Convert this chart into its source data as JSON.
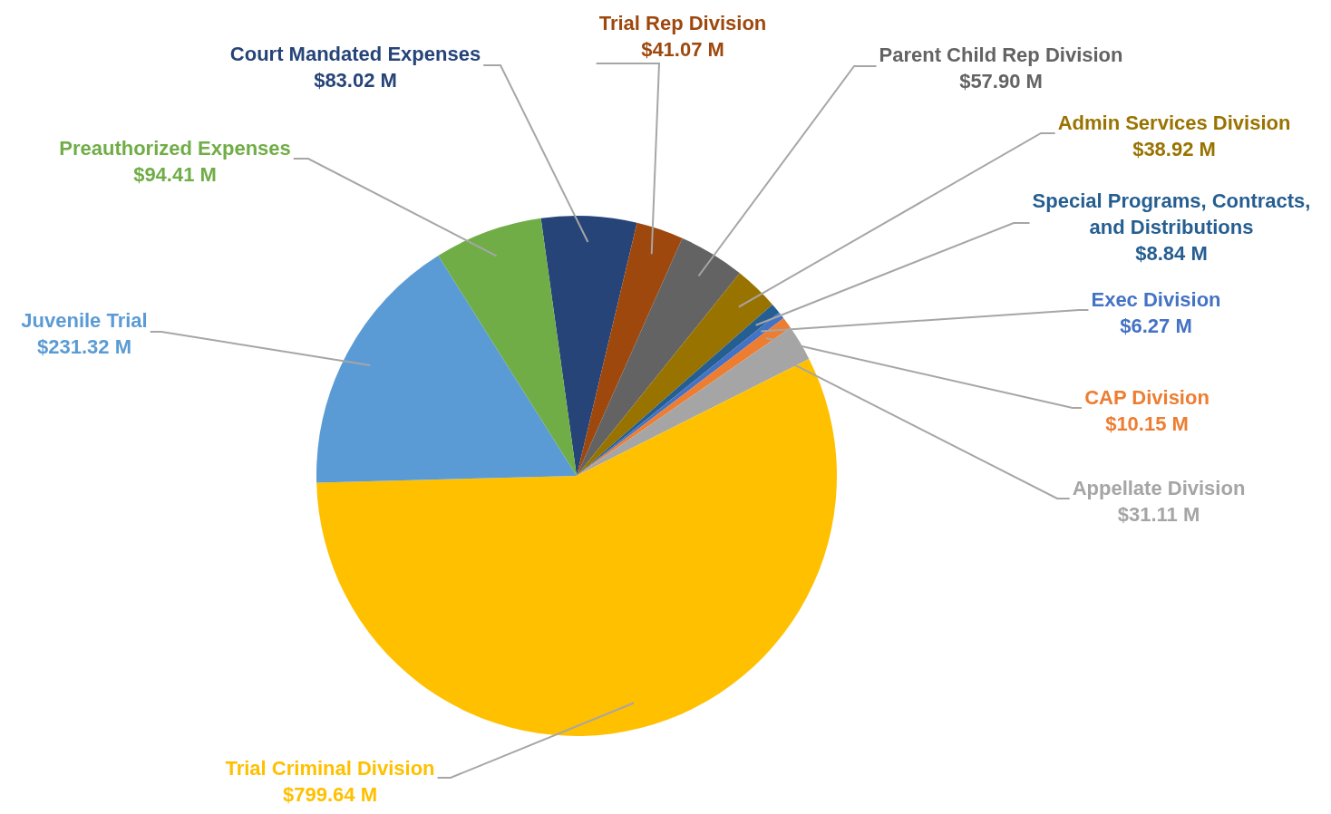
{
  "chart_data": {
    "type": "pie",
    "categories": [
      "Court Mandated Expenses",
      "Trial Rep Division",
      "Parent Child Rep Division",
      "Admin Services Division",
      "Special Programs, Contracts, and Distributions",
      "Exec Division",
      "CAP Division",
      "Appellate Division",
      "Trial Criminal Division",
      "Juvenile Trial",
      "Preauthorized Expenses"
    ],
    "values": [
      83.02,
      41.07,
      57.9,
      38.92,
      8.84,
      6.27,
      10.15,
      31.11,
      799.64,
      231.32,
      94.41
    ],
    "colors": [
      "#264478",
      "#9e480e",
      "#636363",
      "#997300",
      "#255e91",
      "#4472c4",
      "#ed7d31",
      "#a5a5a5",
      "#ffc000",
      "#5b9bd5",
      "#70ad47"
    ],
    "value_labels": [
      "$83.02 M",
      "$41.07 M",
      "$57.90 M",
      "$38.92 M",
      "$8.84 M",
      "$6.27 M",
      "$10.15 M",
      "$31.11 M",
      "$799.64 M",
      "$231.32 M",
      "$94.41 M"
    ]
  }
}
